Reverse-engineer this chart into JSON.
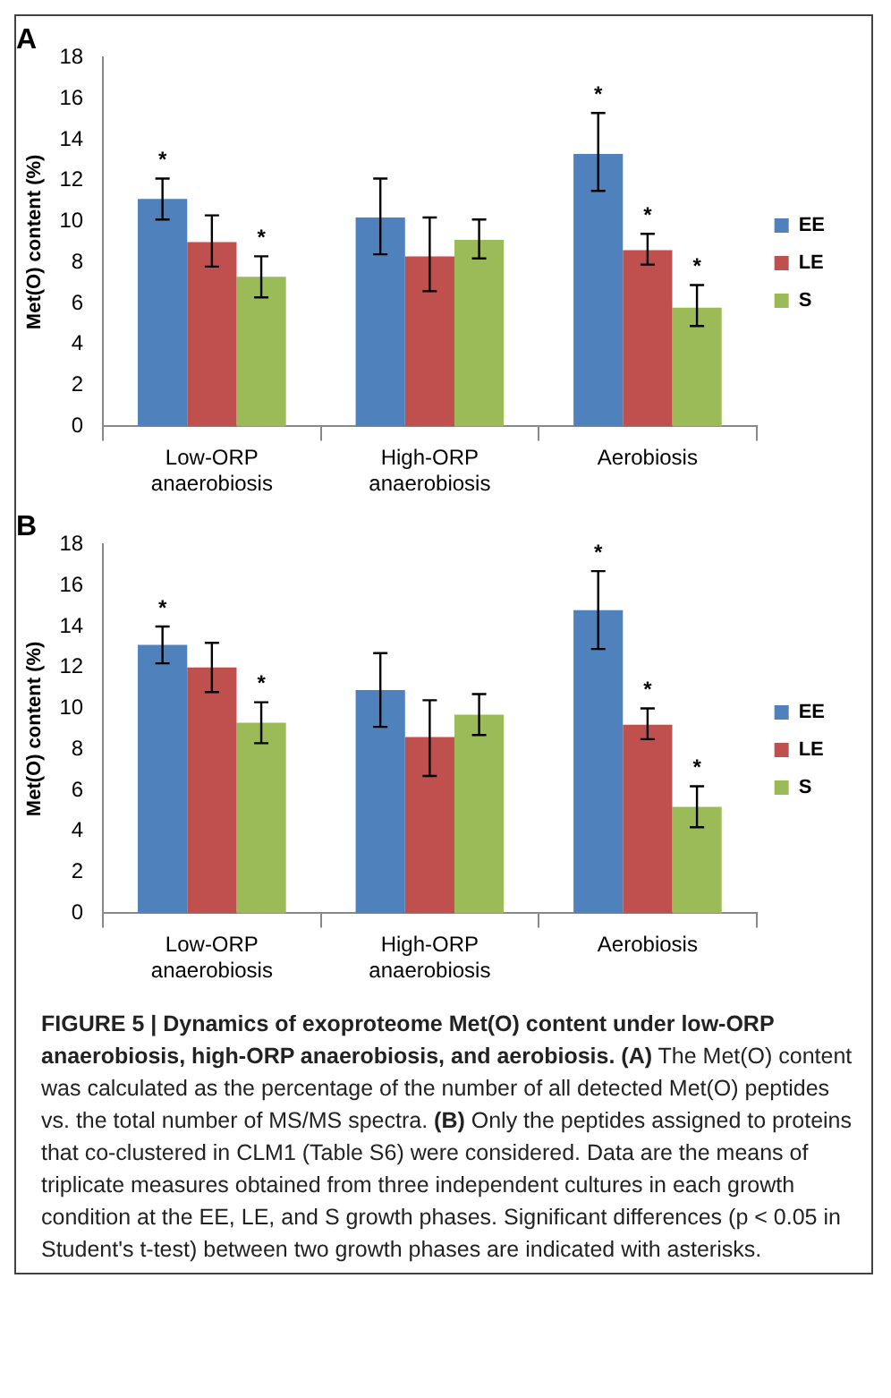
{
  "chart_data": [
    {
      "type": "bar",
      "title": "A",
      "ylabel": "Met(O) content (%)",
      "categories": [
        "Low-ORP anaerobiosis",
        "High-ORP anaerobiosis",
        "Aerobiosis"
      ],
      "ylim": [
        0,
        18
      ],
      "yticks": [
        0,
        2,
        4,
        6,
        8,
        10,
        12,
        14,
        16,
        18
      ],
      "legend": "right",
      "series": [
        {
          "name": "EE",
          "color": "#4f81bd",
          "values": [
            11.1,
            10.2,
            13.3
          ],
          "errors": [
            [
              10.1,
              12.1
            ],
            [
              8.4,
              12.1
            ],
            [
              11.5,
              15.3
            ]
          ],
          "value_labels": [
            "*",
            null,
            "*"
          ]
        },
        {
          "name": "LE",
          "color": "#c0504d",
          "values": [
            9.0,
            8.3,
            8.6
          ],
          "errors": [
            [
              7.8,
              10.3
            ],
            [
              6.6,
              10.2
            ],
            [
              7.9,
              9.4
            ]
          ],
          "value_labels": [
            null,
            null,
            "*"
          ]
        },
        {
          "name": "S",
          "color": "#9bbb59",
          "values": [
            7.3,
            9.1,
            5.8
          ],
          "errors": [
            [
              6.3,
              8.3
            ],
            [
              8.2,
              10.1
            ],
            [
              4.9,
              6.9
            ]
          ],
          "value_labels": [
            "*",
            null,
            "*"
          ]
        }
      ]
    },
    {
      "type": "bar",
      "title": "B",
      "ylabel": "Met(O) content (%)",
      "categories": [
        "Low-ORP anaerobiosis",
        "High-ORP anaerobiosis",
        "Aerobiosis"
      ],
      "ylim": [
        0,
        18
      ],
      "yticks": [
        0,
        2,
        4,
        6,
        8,
        10,
        12,
        14,
        16,
        18
      ],
      "legend": "right",
      "series": [
        {
          "name": "EE",
          "color": "#4f81bd",
          "values": [
            13.1,
            10.9,
            14.8
          ],
          "errors": [
            [
              12.2,
              14.0
            ],
            [
              9.1,
              12.7
            ],
            [
              12.9,
              16.7
            ]
          ],
          "value_labels": [
            "*",
            null,
            "*"
          ]
        },
        {
          "name": "LE",
          "color": "#c0504d",
          "values": [
            12.0,
            8.6,
            9.2
          ],
          "errors": [
            [
              10.8,
              13.2
            ],
            [
              6.7,
              10.4
            ],
            [
              8.5,
              10.0
            ]
          ],
          "value_labels": [
            null,
            null,
            "*"
          ]
        },
        {
          "name": "S",
          "color": "#9bbb59",
          "values": [
            9.3,
            9.7,
            5.2
          ],
          "errors": [
            [
              8.3,
              10.3
            ],
            [
              8.7,
              10.7
            ],
            [
              4.2,
              6.2
            ]
          ],
          "value_labels": [
            "*",
            null,
            "*"
          ]
        }
      ],
      "annotations": [
        "FIGURE 5 | Dynamics of exoproteome Met(O) content under low-ORP anaerobiosis, high-ORP anaerobiosis, and aerobiosis.",
        "(A) The Met(O) content was calculated as the percentage of the number of all detected Met(O) peptides vs. the total number of MS/MS spectra.",
        "(B) Only the peptides assigned to proteins that co-clustered in CLM1 (Table S6) were considered.",
        "Data are the means of triplicate measures obtained from three independent cultures in each growth condition at the EE, LE, and S growth phases. Significant differences (p < 0.05 in Student's t-test) between two growth phases are indicated with asterisks."
      ]
    }
  ]
}
